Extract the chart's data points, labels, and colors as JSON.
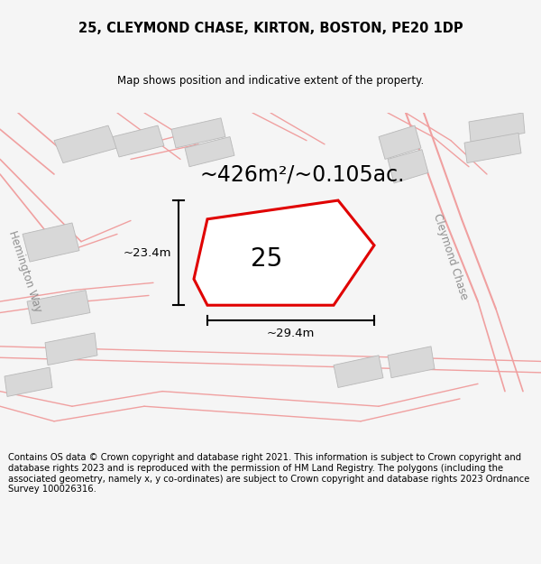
{
  "title": "25, CLEYMOND CHASE, KIRTON, BOSTON, PE20 1DP",
  "subtitle": "Map shows position and indicative extent of the property.",
  "area_text": "~426m²/~0.105ac.",
  "label_25": "25",
  "dim_width": "~29.4m",
  "dim_height": "~23.4m",
  "street_cleymond": "Cleymond Chase",
  "street_hemington": "Hemington Way",
  "footer_text": "Contains OS data © Crown copyright and database right 2021. This information is subject to Crown copyright and database rights 2023 and is reproduced with the permission of HM Land Registry. The polygons (including the associated geometry, namely x, y co-ordinates) are subject to Crown copyright and database rights 2023 Ordnance Survey 100026316.",
  "bg_color": "#f5f5f5",
  "map_bg": "#ffffff",
  "plot_color": "#e00000",
  "road_color": "#f0a0a0",
  "building_color": "#d8d8d8",
  "title_fontsize": 10.5,
  "subtitle_fontsize": 8.5,
  "area_fontsize": 17,
  "label_fontsize": 20,
  "footer_fontsize": 7.2,
  "street_fontsize": 8.5
}
